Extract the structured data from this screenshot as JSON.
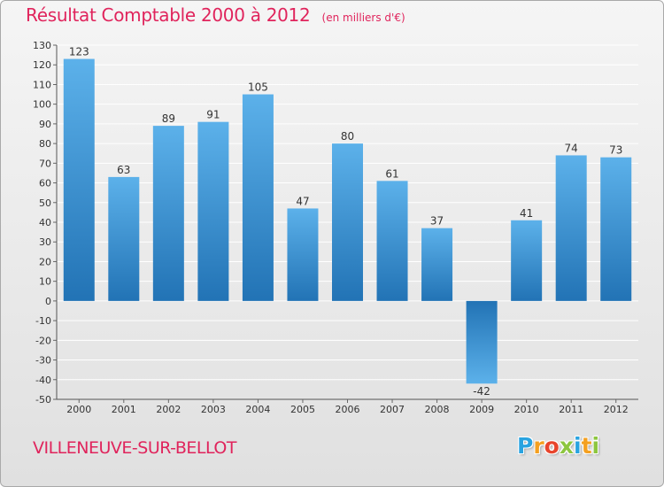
{
  "header": {
    "title": "Résultat Comptable 2000 à 2012",
    "subtitle": "(en milliers d'€)"
  },
  "footer": {
    "town": "VILLENEUVE-SUR-BELLOT",
    "logo_letters": [
      "P",
      "r",
      "o",
      "x",
      "i",
      "t",
      "i"
    ],
    "logo_colors": [
      "#29a3e0",
      "#f4a020",
      "#e8452c",
      "#8dc63f",
      "#29a3e0",
      "#f4a020",
      "#8dc63f"
    ]
  },
  "colors": {
    "accent": "#e0245c",
    "bar_light": "#5cb1ea",
    "bar_dark": "#2273b5",
    "grid": "#ffffff",
    "axis_text": "#333333"
  },
  "chart_data": {
    "type": "bar",
    "title": "Résultat Comptable 2000 à 2012",
    "subtitle": "(en milliers d'€)",
    "xlabel": "",
    "ylabel": "",
    "categories": [
      "2000",
      "2001",
      "2002",
      "2003",
      "2004",
      "2005",
      "2006",
      "2007",
      "2008",
      "2009",
      "2010",
      "2011",
      "2012"
    ],
    "values": [
      123,
      63,
      89,
      91,
      105,
      47,
      80,
      61,
      37,
      -42,
      41,
      74,
      73
    ],
    "data_labels": [
      "123",
      "63",
      "89",
      "91",
      "105",
      "47",
      "80",
      "61",
      "37",
      "-42",
      "41",
      "74",
      "73"
    ],
    "ylim": [
      -50,
      130
    ],
    "yticks": [
      130,
      120,
      110,
      100,
      90,
      80,
      70,
      60,
      50,
      40,
      30,
      20,
      10,
      0,
      -10,
      -20,
      -30,
      -40,
      -50
    ],
    "ytick_labels": [
      "130",
      "120",
      "110",
      "100",
      "90",
      "80",
      "70",
      "60",
      "50",
      "40",
      "30",
      "20",
      "10",
      "0",
      "-10",
      "-20",
      "-30",
      "-40",
      "-50"
    ],
    "grid": true
  }
}
